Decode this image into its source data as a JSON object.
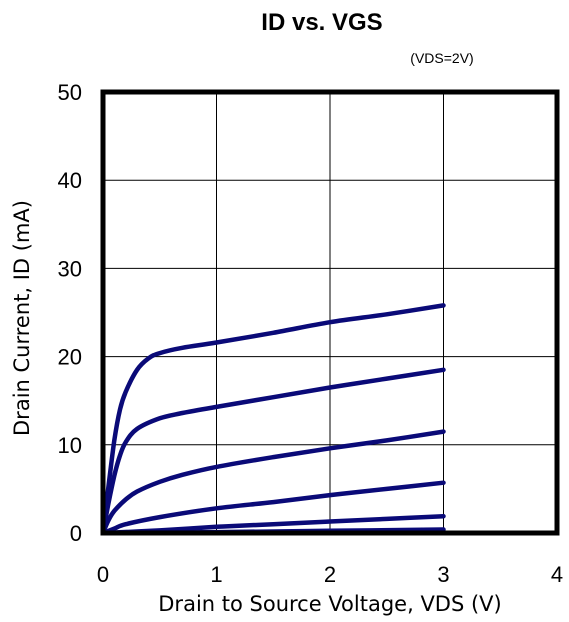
{
  "chart_data": {
    "type": "line",
    "title": "ID vs. VGS",
    "subtitle": "(VDS=2V)",
    "xlabel": "Drain to Source Voltage, VDS (V)",
    "ylabel": "Drain Current, ID (mA)",
    "xlim": [
      0,
      4
    ],
    "ylim": [
      0,
      50
    ],
    "xticks": [
      "0",
      "1",
      "2",
      "3",
      "4"
    ],
    "yticks": [
      "0",
      "10",
      "20",
      "30",
      "40",
      "50"
    ],
    "grid": true,
    "line_color": "#0a0a78",
    "series": [
      {
        "x": [
          0,
          0.05,
          0.1,
          0.15,
          0.2,
          0.3,
          0.4,
          0.5,
          0.7,
          1.0,
          1.5,
          2.0,
          2.5,
          3.0
        ],
        "y": [
          0,
          5.5,
          10.5,
          14,
          16,
          18.5,
          19.8,
          20.4,
          21,
          21.6,
          22.7,
          23.9,
          24.8,
          25.8
        ]
      },
      {
        "x": [
          0,
          0.05,
          0.1,
          0.15,
          0.2,
          0.3,
          0.5,
          0.7,
          1.0,
          1.5,
          2.0,
          2.5,
          3.0
        ],
        "y": [
          0,
          3.5,
          6.5,
          8.8,
          10.3,
          11.8,
          13,
          13.6,
          14.3,
          15.4,
          16.5,
          17.5,
          18.5
        ]
      },
      {
        "x": [
          0,
          0.05,
          0.1,
          0.2,
          0.3,
          0.5,
          0.7,
          1.0,
          1.5,
          2.0,
          2.5,
          3.0
        ],
        "y": [
          0,
          1.5,
          2.5,
          3.8,
          4.7,
          5.8,
          6.6,
          7.5,
          8.6,
          9.6,
          10.5,
          11.5
        ]
      },
      {
        "x": [
          0,
          0.1,
          0.2,
          0.5,
          1.0,
          1.5,
          2.0,
          2.5,
          3.0
        ],
        "y": [
          0,
          0.5,
          1.0,
          1.8,
          2.8,
          3.5,
          4.3,
          5.0,
          5.7
        ]
      },
      {
        "x": [
          0,
          0.5,
          1.0,
          1.5,
          2.0,
          2.5,
          3.0
        ],
        "y": [
          0,
          0.3,
          0.7,
          1.0,
          1.3,
          1.6,
          1.9
        ]
      },
      {
        "x": [
          0,
          1.0,
          2.0,
          3.0
        ],
        "y": [
          0,
          0.1,
          0.25,
          0.4
        ]
      }
    ]
  }
}
